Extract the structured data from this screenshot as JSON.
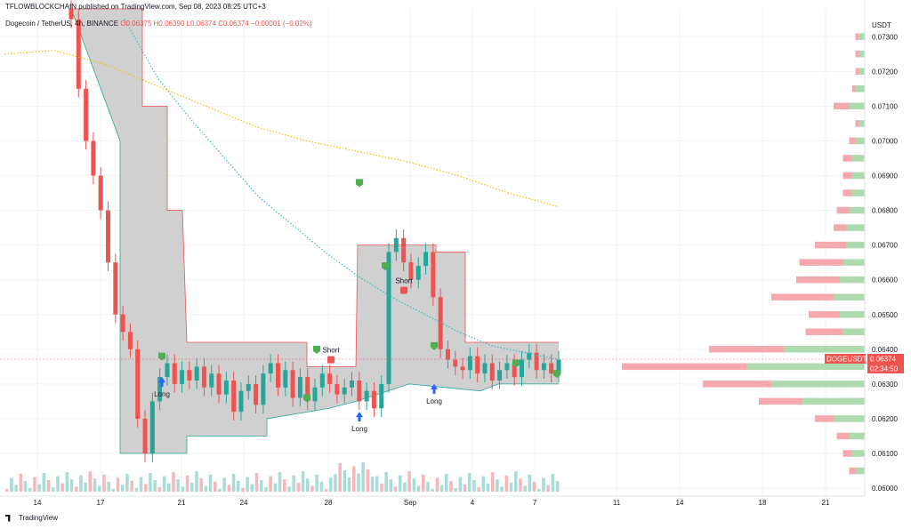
{
  "header": {
    "publisher": "TFLOWBLOCKCHAIN published on TradingView.com, Sep 08, 2023 08:25 UTC+3",
    "symbol": "Dogecoin / TetherUS, 4h, BINANCE",
    "ohlc": "O0.06375 H0.06390 L0.06374 C0.06374 −0.00001 (−0.02%)"
  },
  "price_axis": {
    "currency": "USDT",
    "ticks": [
      "0.07300",
      "0.07200",
      "0.07100",
      "0.07000",
      "0.06900",
      "0.06800",
      "0.06700",
      "0.06600",
      "0.06500",
      "0.06400",
      "0.06300",
      "0.06200",
      "0.06100",
      "0.06000"
    ],
    "last_price_label": "DOGEUSDT",
    "last_price": "0.06374",
    "countdown": "02:34:50"
  },
  "time_axis": {
    "ticks": [
      "14",
      "17",
      "21",
      "24",
      "28",
      "Sep",
      "4",
      "7",
      "11",
      "14",
      "18",
      "21"
    ]
  },
  "annotations": {
    "long": "Long",
    "short": "Short"
  },
  "branding": {
    "logo_text": "TradingView"
  },
  "colors": {
    "up": "#26a69a",
    "down": "#ef5350",
    "band_fill": "#c8c8c8",
    "ema_fast": "#3bb8c9",
    "ema_slow": "#f2c300",
    "vp_buy": "#a5d6a7",
    "vp_sell": "#f4a0a6",
    "signal": "#4caf50"
  },
  "chart_data": {
    "type": "candlestick",
    "title": "Dogecoin / TetherUS, 4h, BINANCE",
    "ylim": [
      0.0599,
      0.0738
    ],
    "x_ticks": [
      "14",
      "17",
      "21",
      "24",
      "28",
      "Sep",
      "4",
      "7",
      "11",
      "14",
      "18",
      "21"
    ],
    "last_close": 0.06374,
    "candles_close": [
      0.0735,
      0.0715,
      0.07,
      0.069,
      0.068,
      0.0665,
      0.065,
      0.0645,
      0.064,
      0.062,
      0.061,
      0.0625,
      0.0632,
      0.0636,
      0.063,
      0.0634,
      0.0631,
      0.0635,
      0.0629,
      0.0633,
      0.0627,
      0.0631,
      0.0622,
      0.0628,
      0.063,
      0.0624,
      0.0633,
      0.0636,
      0.0629,
      0.0634,
      0.0626,
      0.0632,
      0.0625,
      0.0629,
      0.0633,
      0.063,
      0.0627,
      0.0629,
      0.0631,
      0.0625,
      0.0628,
      0.0623,
      0.063,
      0.0668,
      0.0672,
      0.0665,
      0.066,
      0.0664,
      0.0668,
      0.0655,
      0.064,
      0.0637,
      0.0635,
      0.0634,
      0.0638,
      0.0633,
      0.0636,
      0.0631,
      0.0634,
      0.0636,
      0.0632,
      0.0637,
      0.0639,
      0.0634,
      0.0636,
      0.0633,
      0.0637
    ],
    "ema_fast": [
      0.0735,
      0.0718,
      0.0706,
      0.0695,
      0.0684,
      0.0676,
      0.0668,
      0.0661,
      0.0655,
      0.065,
      0.0645,
      0.0641,
      0.0639,
      0.0637
    ],
    "ema_slow": [
      0.0725,
      0.0726,
      0.0722,
      0.0716,
      0.071,
      0.0704,
      0.07,
      0.0697,
      0.0694,
      0.069,
      0.0685,
      0.0681
    ],
    "volume_profile": [
      {
        "price": 0.073,
        "buy": 2,
        "sell": 1
      },
      {
        "price": 0.0725,
        "buy": 2,
        "sell": 1
      },
      {
        "price": 0.072,
        "buy": 2,
        "sell": 1
      },
      {
        "price": 0.0715,
        "buy": 3,
        "sell": 1
      },
      {
        "price": 0.071,
        "buy": 5,
        "sell": 5
      },
      {
        "price": 0.0705,
        "buy": 2,
        "sell": 1
      },
      {
        "price": 0.07,
        "buy": 3,
        "sell": 2
      },
      {
        "price": 0.0695,
        "buy": 4,
        "sell": 3
      },
      {
        "price": 0.069,
        "buy": 4,
        "sell": 3
      },
      {
        "price": 0.0685,
        "buy": 4,
        "sell": 3
      },
      {
        "price": 0.068,
        "buy": 5,
        "sell": 4
      },
      {
        "price": 0.0675,
        "buy": 6,
        "sell": 4
      },
      {
        "price": 0.067,
        "buy": 6,
        "sell": 10
      },
      {
        "price": 0.0665,
        "buy": 7,
        "sell": 14
      },
      {
        "price": 0.066,
        "buy": 8,
        "sell": 14
      },
      {
        "price": 0.0655,
        "buy": 10,
        "sell": 20
      },
      {
        "price": 0.065,
        "buy": 8,
        "sell": 10
      },
      {
        "price": 0.0645,
        "buy": 7,
        "sell": 12
      },
      {
        "price": 0.064,
        "buy": 26,
        "sell": 24
      },
      {
        "price": 0.0635,
        "buy": 38,
        "sell": 40
      },
      {
        "price": 0.063,
        "buy": 30,
        "sell": 22
      },
      {
        "price": 0.0625,
        "buy": 20,
        "sell": 14
      },
      {
        "price": 0.062,
        "buy": 10,
        "sell": 6
      },
      {
        "price": 0.0615,
        "buy": 5,
        "sell": 4
      },
      {
        "price": 0.061,
        "buy": 4,
        "sell": 3
      },
      {
        "price": 0.0605,
        "buy": 3,
        "sell": 2
      }
    ]
  }
}
